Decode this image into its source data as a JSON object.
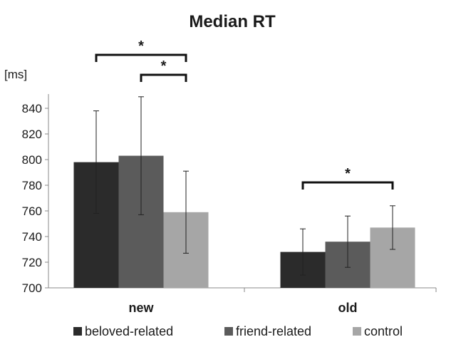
{
  "chart_data": {
    "type": "bar",
    "title": "Median RT",
    "ylabel": "[ms]",
    "xlabel": "",
    "ylim": [
      700,
      850
    ],
    "yticks": [
      700,
      720,
      740,
      760,
      780,
      800,
      820,
      840
    ],
    "categories": [
      "new",
      "old"
    ],
    "series": [
      {
        "name": "beloved-related",
        "values": [
          798,
          728
        ],
        "error": [
          40,
          18
        ],
        "color": "#2b2b2b"
      },
      {
        "name": "friend-related",
        "values": [
          803,
          736
        ],
        "error": [
          46,
          20
        ],
        "color": "#5b5b5b"
      },
      {
        "name": "control",
        "values": [
          759,
          747
        ],
        "error": [
          32,
          17
        ],
        "color": "#a6a6a6"
      }
    ],
    "significance": [
      {
        "category": 0,
        "from_series": 0,
        "to_series": 2,
        "label": "*"
      },
      {
        "category": 0,
        "from_series": 1,
        "to_series": 2,
        "label": "*"
      },
      {
        "category": 1,
        "from_series": 0,
        "to_series": 2,
        "label": "*"
      }
    ],
    "grid": false,
    "legend_position": "bottom"
  }
}
